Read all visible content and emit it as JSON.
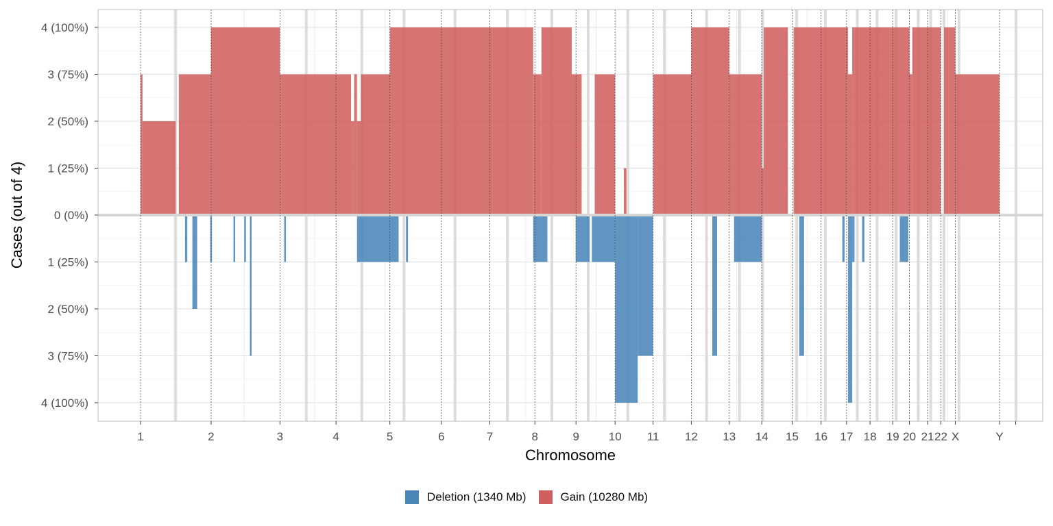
{
  "chart_data": {
    "type": "bar",
    "xlabel": "Chromosome",
    "ylabel": "Cases (out of 4)",
    "ylim": [
      -4,
      4
    ],
    "y_ticks": [
      {
        "value": 4,
        "label": "4 (100%)"
      },
      {
        "value": 3,
        "label": "3 (75%)"
      },
      {
        "value": 2,
        "label": "2 (50%)"
      },
      {
        "value": 1,
        "label": "1 (25%)"
      },
      {
        "value": 0,
        "label": "0 (0%)"
      },
      {
        "value": -1,
        "label": "1 (25%)"
      },
      {
        "value": -2,
        "label": "2 (50%)"
      },
      {
        "value": -3,
        "label": "3 (75%)"
      },
      {
        "value": -4,
        "label": "4 (100%)"
      }
    ],
    "chromosomes": [
      "1",
      "2",
      "3",
      "4",
      "5",
      "6",
      "7",
      "8",
      "9",
      "10",
      "11",
      "12",
      "13",
      "14",
      "15",
      "16",
      "17",
      "18",
      "19",
      "20",
      "21",
      "22",
      "X",
      "Y"
    ],
    "chromosome_bounds_mb": [
      0,
      249,
      492,
      690,
      880,
      1062,
      1233,
      1392,
      1537,
      1675,
      1809,
      1944,
      2078,
      2193,
      2300,
      2402,
      2492,
      2575,
      2655,
      2714,
      2778,
      2825,
      2876,
      3032,
      3089
    ],
    "centromeres_mb": [
      124,
      585,
      781,
      930,
      1110,
      1295,
      1452,
      1580,
      1720,
      1849,
      1998,
      2114,
      2196,
      2316,
      2417,
      2530,
      2600,
      2667,
      2745,
      2789,
      2836,
      2889,
      3090
    ],
    "gridline_mb": [
      118,
      366,
      614,
      863,
      1111,
      1359,
      1608,
      1856,
      2104,
      2353,
      2601,
      2849
    ],
    "series": [
      {
        "name": "Deletion (1340 Mb)",
        "color": "#4a86b8",
        "segments": [
          {
            "start": 157,
            "end": 165,
            "value": -1
          },
          {
            "start": 183,
            "end": 200,
            "value": -2
          },
          {
            "start": 246,
            "end": 252,
            "value": -1
          },
          {
            "start": 328,
            "end": 334,
            "value": -1
          },
          {
            "start": 366,
            "end": 372,
            "value": -1
          },
          {
            "start": 386,
            "end": 392,
            "value": -3
          },
          {
            "start": 507,
            "end": 513,
            "value": -1
          },
          {
            "start": 764,
            "end": 911,
            "value": -1
          },
          {
            "start": 937,
            "end": 944,
            "value": -1
          },
          {
            "start": 1386,
            "end": 1436,
            "value": -1
          },
          {
            "start": 1536,
            "end": 1585,
            "value": -1
          },
          {
            "start": 1593,
            "end": 1675,
            "value": -1
          },
          {
            "start": 1675,
            "end": 1755,
            "value": -4
          },
          {
            "start": 1755,
            "end": 1809,
            "value": -3
          },
          {
            "start": 2018,
            "end": 2035,
            "value": -3
          },
          {
            "start": 2095,
            "end": 2193,
            "value": -1
          },
          {
            "start": 2325,
            "end": 2342,
            "value": -3
          },
          {
            "start": 2477,
            "end": 2485,
            "value": -1
          },
          {
            "start": 2497,
            "end": 2512,
            "value": -4
          },
          {
            "start": 2512,
            "end": 2520,
            "value": -1
          },
          {
            "start": 2547,
            "end": 2555,
            "value": -1
          },
          {
            "start": 2680,
            "end": 2710,
            "value": -1
          }
        ]
      },
      {
        "name": "Gain (10280 Mb)",
        "color": "#d06060",
        "segments": [
          {
            "start": 0,
            "end": 7,
            "value": 3
          },
          {
            "start": 7,
            "end": 124,
            "value": 2
          },
          {
            "start": 135,
            "end": 249,
            "value": 3
          },
          {
            "start": 249,
            "end": 492,
            "value": 4
          },
          {
            "start": 492,
            "end": 743,
            "value": 3
          },
          {
            "start": 743,
            "end": 754,
            "value": 2
          },
          {
            "start": 754,
            "end": 764,
            "value": 3
          },
          {
            "start": 764,
            "end": 778,
            "value": 2
          },
          {
            "start": 778,
            "end": 880,
            "value": 3
          },
          {
            "start": 880,
            "end": 1386,
            "value": 4
          },
          {
            "start": 1386,
            "end": 1415,
            "value": 3
          },
          {
            "start": 1415,
            "end": 1522,
            "value": 4
          },
          {
            "start": 1522,
            "end": 1557,
            "value": 3
          },
          {
            "start": 1603,
            "end": 1675,
            "value": 3
          },
          {
            "start": 1706,
            "end": 1715,
            "value": 1
          },
          {
            "start": 1809,
            "end": 1944,
            "value": 3
          },
          {
            "start": 1944,
            "end": 2078,
            "value": 4
          },
          {
            "start": 2078,
            "end": 2193,
            "value": 3
          },
          {
            "start": 2193,
            "end": 2200,
            "value": 1
          },
          {
            "start": 2200,
            "end": 2285,
            "value": 4
          },
          {
            "start": 2305,
            "end": 2497,
            "value": 4
          },
          {
            "start": 2497,
            "end": 2512,
            "value": 3
          },
          {
            "start": 2512,
            "end": 2714,
            "value": 4
          },
          {
            "start": 2714,
            "end": 2724,
            "value": 3
          },
          {
            "start": 2724,
            "end": 2825,
            "value": 4
          },
          {
            "start": 2836,
            "end": 2876,
            "value": 4
          },
          {
            "start": 2876,
            "end": 3032,
            "value": 3
          }
        ]
      }
    ],
    "legend_position": "bottom",
    "grid": true
  }
}
